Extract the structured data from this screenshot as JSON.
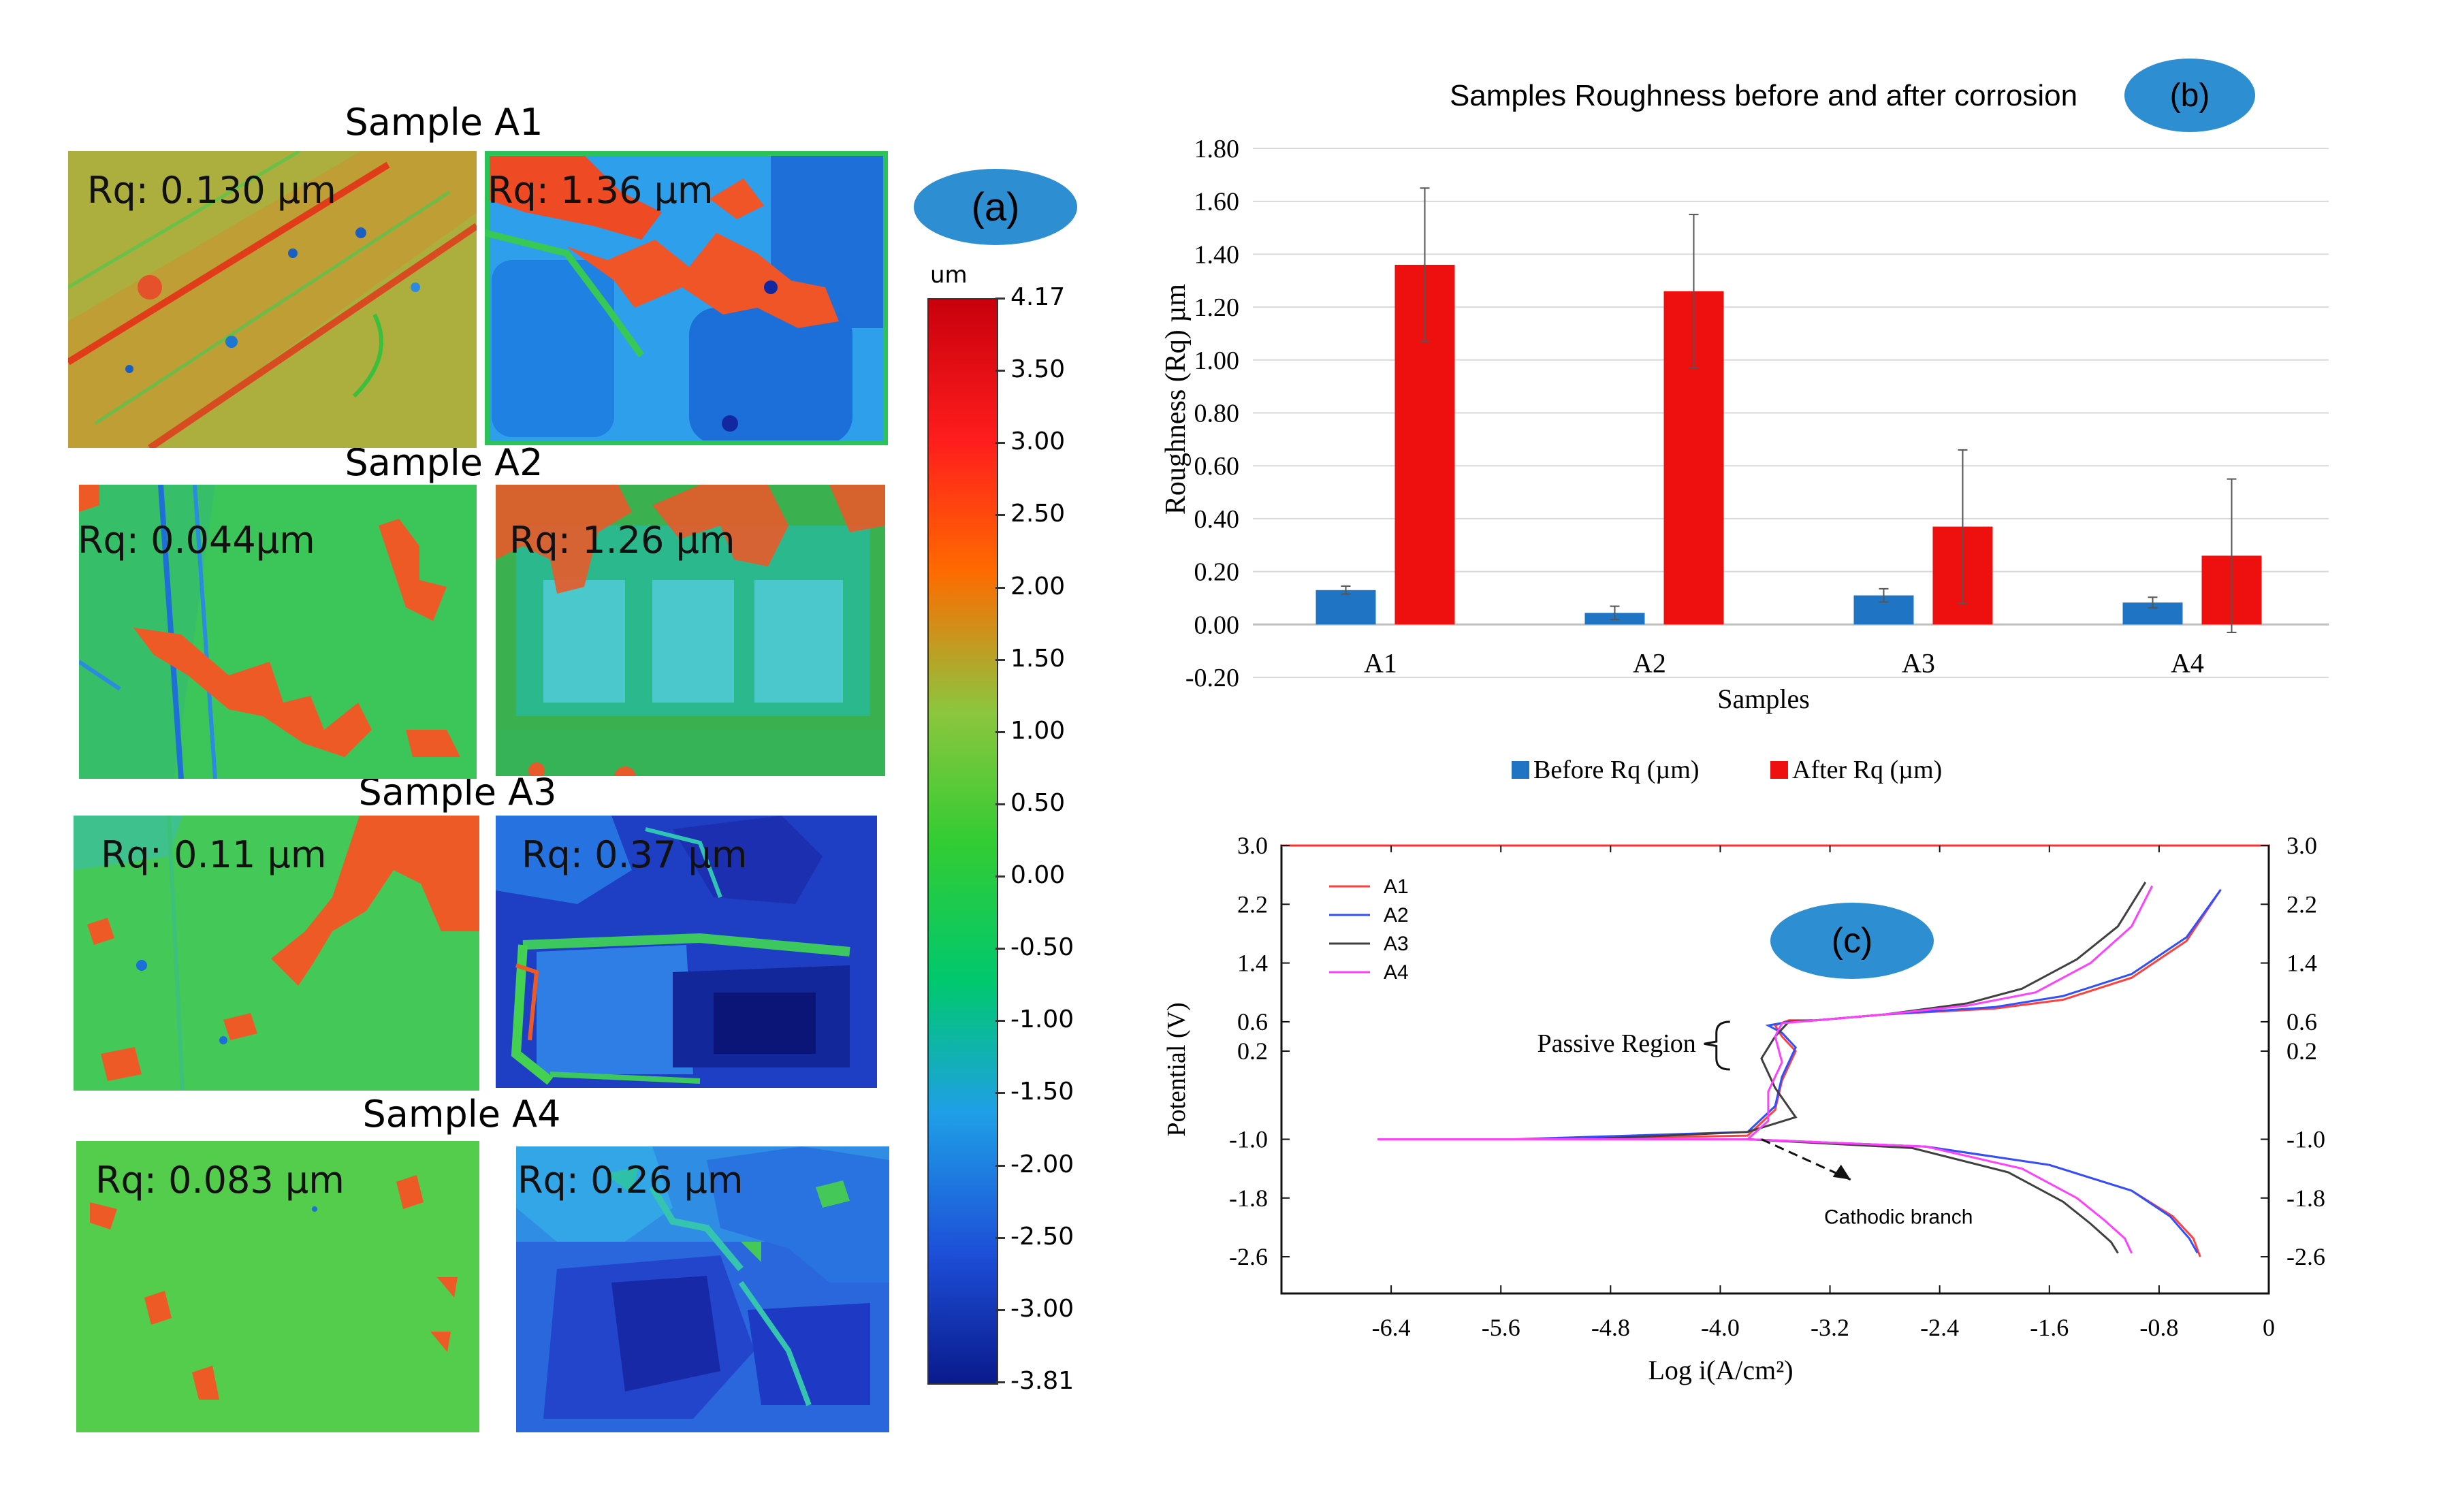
{
  "panel_a": {
    "label": "(a)",
    "colorbar": {
      "unit": "um",
      "ticks": [
        "4.17",
        "3.50",
        "3.00",
        "2.50",
        "2.00",
        "1.50",
        "1.00",
        "0.50",
        "0.00",
        "-0.50",
        "-1.00",
        "-1.50",
        "-2.00",
        "-2.50",
        "-3.00",
        "-3.81"
      ],
      "colors": [
        "#c8000c",
        "#ff1d1d",
        "#ff6a00",
        "#8cc63e",
        "#33cc33",
        "#00c86e",
        "#1f9fe6",
        "#1d4fd8",
        "#0a1a8c"
      ]
    },
    "samples": [
      {
        "title": "Sample A1",
        "before": "Rq: 0.130 µm",
        "after": "Rq: 1.36 µm"
      },
      {
        "title": "Sample A2",
        "before": "Rq: 0.044µm",
        "after": "Rq: 1.26 µm"
      },
      {
        "title": "Sample A3",
        "before": "Rq: 0.11 µm",
        "after": "Rq: 0.37 µm"
      },
      {
        "title": "Sample A4",
        "before": "Rq: 0.083 µm",
        "after": "Rq: 0.26 µm"
      }
    ]
  },
  "chart_data": [
    {
      "id": "b",
      "type": "bar",
      "label": "(b)",
      "title": "Samples Roughness before and after corrosion",
      "xlabel": "Samples",
      "ylabel": "Roughness (Rq) µm",
      "categories": [
        "A1",
        "A2",
        "A3",
        "A4"
      ],
      "ylim": [
        -0.2,
        1.8
      ],
      "yticks": [
        "1.80",
        "1.60",
        "1.40",
        "1.20",
        "1.00",
        "0.80",
        "0.60",
        "0.40",
        "0.20",
        "0.00",
        "-0.20"
      ],
      "ytick_values": [
        1.8,
        1.6,
        1.4,
        1.2,
        1.0,
        0.8,
        0.6,
        0.4,
        0.2,
        0.0,
        -0.2
      ],
      "series": [
        {
          "name": "Before Rq  (µm)",
          "color": "#1f74c4",
          "values": [
            0.13,
            0.044,
            0.11,
            0.083
          ],
          "errors": [
            0.015,
            0.025,
            0.025,
            0.02
          ]
        },
        {
          "name": "After Rq  (µm)",
          "color": "#ee0f0f",
          "values": [
            1.36,
            1.26,
            0.37,
            0.26
          ],
          "errors": [
            0.29,
            0.29,
            0.29,
            0.29
          ]
        }
      ],
      "grid": true,
      "legend": "bottom"
    },
    {
      "id": "c",
      "type": "line",
      "label": "(c)",
      "xlabel": "Log i(A/cm²)",
      "ylabel": "Potential (V)",
      "xlim": [
        -7.2,
        0
      ],
      "ylim": [
        -3.1,
        3.0
      ],
      "xticks": [
        "-6.4",
        "-5.6",
        "-4.8",
        "-4.0",
        "-3.2",
        "-2.4",
        "-1.6",
        "-0.8",
        "0"
      ],
      "xtick_values": [
        -6.4,
        -5.6,
        -4.8,
        -4.0,
        -3.2,
        -2.4,
        -1.6,
        -0.8,
        0
      ],
      "yticks": [
        "3.0",
        "2.2",
        "1.4",
        "0.6",
        "0.2",
        "-1.0",
        "-1.8",
        "-2.6"
      ],
      "ytick_values": [
        3.0,
        2.2,
        1.4,
        0.6,
        0.2,
        -1.0,
        -1.8,
        -2.6
      ],
      "series": [
        {
          "name": "A1",
          "color": "#ff4040",
          "x": [
            -5.1,
            -3.8,
            -3.6,
            -3.55,
            -3.45,
            -3.55,
            -3.6,
            -3.5,
            -3.3,
            -2.8,
            -2.0,
            -1.5,
            -1.0,
            -0.6,
            -0.35
          ],
          "y": [
            -1.0,
            -0.95,
            -0.6,
            -0.2,
            0.2,
            0.4,
            0.55,
            0.62,
            0.62,
            0.7,
            0.78,
            0.9,
            1.2,
            1.7,
            2.4
          ]
        },
        {
          "name": "A2",
          "color": "#3050ff",
          "x": [
            -5.5,
            -3.8,
            -3.6,
            -3.55,
            -3.45,
            -3.55,
            -3.65,
            -3.5,
            -3.3,
            -2.8,
            -2.0,
            -1.5,
            -1.0,
            -0.6,
            -0.35
          ],
          "y": [
            -1.0,
            -0.9,
            -0.55,
            -0.15,
            0.25,
            0.45,
            0.55,
            0.6,
            0.62,
            0.7,
            0.8,
            0.95,
            1.25,
            1.75,
            2.4
          ]
        },
        {
          "name": "A3",
          "color": "#404040",
          "x": [
            -5.0,
            -3.8,
            -3.45,
            -3.6,
            -3.7,
            -3.6,
            -3.5,
            -3.3,
            -2.8,
            -2.2,
            -1.8,
            -1.4,
            -1.1,
            -0.9
          ],
          "y": [
            -1.0,
            -0.9,
            -0.7,
            -0.3,
            0.1,
            0.4,
            0.6,
            0.62,
            0.7,
            0.85,
            1.05,
            1.45,
            1.9,
            2.5
          ]
        },
        {
          "name": "A4",
          "color": "#ff40ff",
          "x": [
            -6.5,
            -3.8,
            -3.65,
            -3.65,
            -3.55,
            -3.6,
            -3.55,
            -3.3,
            -2.8,
            -2.2,
            -1.7,
            -1.3,
            -1.0,
            -0.85
          ],
          "y": [
            -1.0,
            -1.0,
            -0.75,
            -0.35,
            0.05,
            0.4,
            0.58,
            0.62,
            0.7,
            0.82,
            1.0,
            1.4,
            1.9,
            2.45
          ]
        }
      ],
      "cathodic": [
        {
          "name": "A1",
          "color": "#ff4040",
          "x": [
            -3.8,
            -2.5,
            -1.6,
            -1.0,
            -0.7,
            -0.55,
            -0.5
          ],
          "y": [
            -1.0,
            -1.1,
            -1.35,
            -1.7,
            -2.05,
            -2.35,
            -2.6
          ]
        },
        {
          "name": "A2",
          "color": "#3050ff",
          "x": [
            -3.8,
            -2.5,
            -1.6,
            -1.0,
            -0.72,
            -0.58,
            -0.52
          ],
          "y": [
            -1.0,
            -1.1,
            -1.35,
            -1.7,
            -2.05,
            -2.35,
            -2.55
          ]
        },
        {
          "name": "A3",
          "color": "#404040",
          "x": [
            -3.8,
            -2.6,
            -1.9,
            -1.5,
            -1.3,
            -1.15,
            -1.1
          ],
          "y": [
            -1.0,
            -1.12,
            -1.45,
            -1.85,
            -2.15,
            -2.4,
            -2.55
          ]
        },
        {
          "name": "A4",
          "color": "#ff40ff",
          "x": [
            -3.8,
            -2.5,
            -1.8,
            -1.4,
            -1.2,
            -1.05,
            -1.0
          ],
          "y": [
            -1.0,
            -1.1,
            -1.4,
            -1.8,
            -2.1,
            -2.35,
            -2.55
          ]
        }
      ],
      "annotations": {
        "passive": "Passive Region",
        "cathodic": "Cathodic branch"
      },
      "legend": "top-left"
    }
  ]
}
